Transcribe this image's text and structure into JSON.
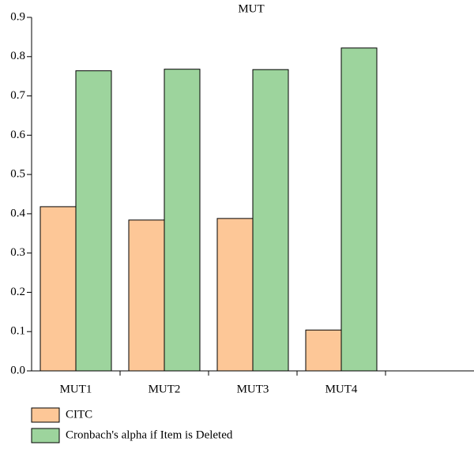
{
  "chart_data": {
    "type": "bar",
    "title": "MUT",
    "categories": [
      "MUT1",
      "MUT2",
      "MUT3",
      "MUT4",
      null
    ],
    "series": [
      {
        "name": "CITC",
        "color": "#fdc797",
        "values": [
          0.418,
          0.384,
          0.388,
          0.104,
          null
        ]
      },
      {
        "name": "Cronbach's alpha if Item is Deleted",
        "color": "#9dd49d",
        "values": [
          0.764,
          0.768,
          0.767,
          0.822,
          null
        ]
      }
    ],
    "ylim": [
      0,
      0.9
    ],
    "yticks": [
      {
        "value": 0,
        "label": "0.0"
      },
      0.1,
      0.2,
      0.3,
      0.4,
      0.5,
      0.6,
      0.7,
      0.8,
      0.9
    ],
    "legend": "bottom-left"
  }
}
